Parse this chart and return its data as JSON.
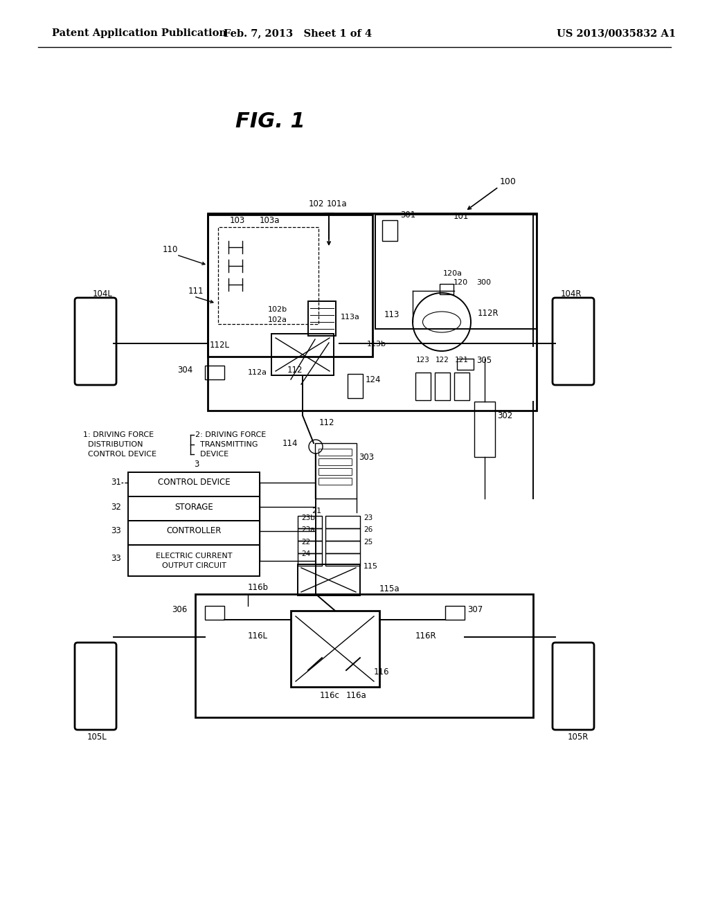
{
  "title": "FIG. 1",
  "header_left": "Patent Application Publication",
  "header_mid": "Feb. 7, 2013   Sheet 1 of 4",
  "header_right": "US 2013/0035832 A1",
  "bg_color": "#ffffff",
  "line_color": "#000000"
}
